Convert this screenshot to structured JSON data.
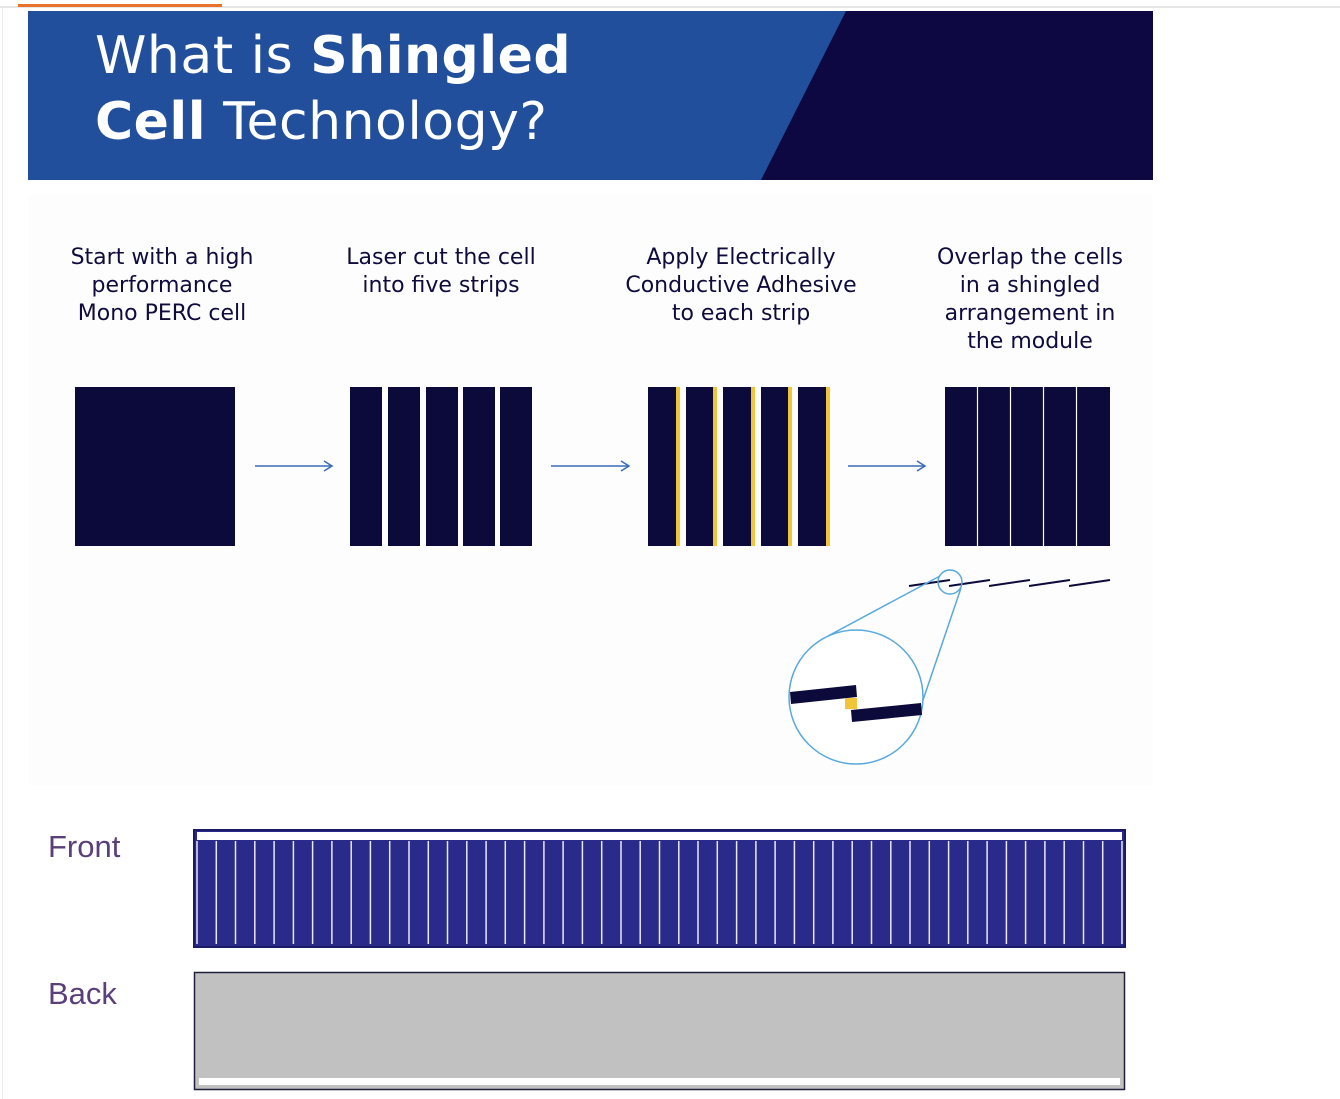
{
  "banner": {
    "title_regular_1": "What is ",
    "title_bold_1": "Shingled",
    "title_bold_2": "Cell",
    "title_regular_2": " Technology?"
  },
  "steps": [
    {
      "caption": "Start with a high\nperformance\nMono PERC cell"
    },
    {
      "caption": "Laser cut the cell\ninto five strips"
    },
    {
      "caption": "Apply Electrically\nConductive Adhesive\nto each strip"
    },
    {
      "caption": "Overlap the cells\nin a shingled\narrangement in\nthe module"
    }
  ],
  "modules": {
    "front_label": "Front",
    "back_label": "Back",
    "front_strip_count": 48
  },
  "colors": {
    "banner_blue": "#214f9b",
    "banner_navy": "#0e0842",
    "cell_navy": "#0c0a3a",
    "adhesive_yellow": "#f2c43a",
    "arrow_blue": "#3b6bb5",
    "zoom_blue": "#58a9dc",
    "front_blue": "#2a2a8a",
    "back_gray": "#c1c1c1",
    "label_purple": "#5b3f7a"
  },
  "icons": [
    "arrow-right-icon",
    "zoom-lens-icon"
  ]
}
